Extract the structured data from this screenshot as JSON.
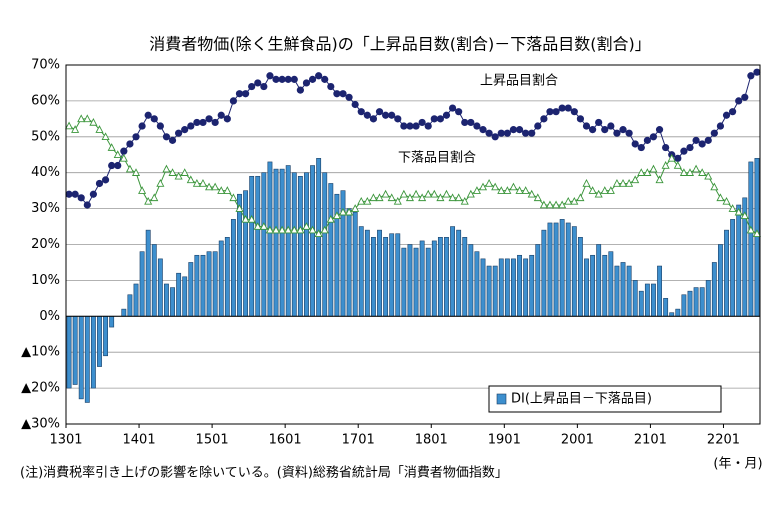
{
  "chart_data": {
    "type": "bar",
    "title": "消費者物価(除く生鮮食品)の「上昇品目数(割合)－下落品目数(割合)」",
    "categories": [
      "1301",
      null,
      null,
      null,
      null,
      null,
      null,
      null,
      null,
      null,
      null,
      null,
      "1401",
      null,
      null,
      null,
      null,
      null,
      null,
      null,
      null,
      null,
      null,
      null,
      "1501",
      null,
      null,
      null,
      null,
      null,
      null,
      null,
      null,
      null,
      null,
      null,
      "1601",
      null,
      null,
      null,
      null,
      null,
      null,
      null,
      null,
      null,
      null,
      null,
      "1701",
      null,
      null,
      null,
      null,
      null,
      null,
      null,
      null,
      null,
      null,
      null,
      "1801",
      null,
      null,
      null,
      null,
      null,
      null,
      null,
      null,
      null,
      null,
      null,
      "1901",
      null,
      null,
      null,
      null,
      null,
      null,
      null,
      null,
      null,
      null,
      null,
      "2001",
      null,
      null,
      null,
      null,
      null,
      null,
      null,
      null,
      null,
      null,
      null,
      "2101",
      null,
      null,
      null,
      null,
      null,
      null,
      null,
      null,
      null,
      null,
      null,
      "2201",
      null,
      null,
      null,
      null,
      null
    ],
    "series": [
      {
        "name": "DI(上昇品目－下落品目)",
        "type": "bar",
        "color": "#3d8fce",
        "values": [
          -20,
          -19,
          -23,
          -24,
          -20,
          -14,
          -11,
          -3,
          0,
          2,
          6,
          9,
          18,
          24,
          20,
          16,
          9,
          8,
          12,
          11,
          15,
          17,
          17,
          18,
          18,
          21,
          22,
          27,
          34,
          35,
          39,
          39,
          40,
          43,
          41,
          41,
          42,
          40,
          39,
          40,
          42,
          44,
          40,
          37,
          34,
          35,
          30,
          29,
          25,
          24,
          22,
          24,
          22,
          23,
          23,
          19,
          20,
          19,
          21,
          19,
          21,
          22,
          22,
          25,
          24,
          22,
          20,
          18,
          16,
          14,
          14,
          16,
          16,
          16,
          17,
          16,
          17,
          20,
          24,
          26,
          26,
          27,
          26,
          25,
          22,
          16,
          17,
          20,
          17,
          18,
          14,
          15,
          14,
          10,
          7,
          9,
          9,
          14,
          5,
          1,
          2,
          6,
          7,
          8,
          8,
          10,
          15,
          20,
          24,
          27,
          31,
          33,
          43,
          44
        ]
      },
      {
        "name": "上昇品目割合",
        "type": "line",
        "marker": "circle",
        "color": "#1c2470",
        "values": [
          34,
          34,
          33,
          31,
          34,
          37,
          38,
          42,
          42,
          46,
          48,
          50,
          53,
          56,
          55,
          53,
          50,
          49,
          51,
          52,
          53,
          54,
          54,
          55,
          54,
          56,
          55,
          60,
          62,
          62,
          64,
          65,
          64,
          67,
          66,
          66,
          66,
          66,
          63,
          65,
          66,
          67,
          66,
          64,
          62,
          62,
          61,
          59,
          57,
          56,
          55,
          57,
          56,
          56,
          55,
          53,
          53,
          53,
          54,
          53,
          55,
          55,
          56,
          58,
          57,
          54,
          54,
          53,
          52,
          51,
          50,
          51,
          51,
          52,
          52,
          51,
          51,
          53,
          55,
          57,
          57,
          58,
          58,
          57,
          55,
          53,
          52,
          54,
          52,
          53,
          51,
          52,
          51,
          48,
          47,
          49,
          50,
          52,
          47,
          45,
          44,
          46,
          47,
          49,
          48,
          49,
          51,
          53,
          56,
          57,
          60,
          61,
          67,
          68
        ]
      },
      {
        "name": "下落品目割合",
        "type": "line",
        "marker": "triangle",
        "color": "#3c963c",
        "values": [
          53,
          52,
          55,
          55,
          54,
          52,
          50,
          47,
          45,
          44,
          41,
          40,
          35,
          32,
          33,
          37,
          41,
          40,
          39,
          40,
          38,
          37,
          37,
          36,
          36,
          35,
          35,
          33,
          30,
          27,
          27,
          25,
          25,
          24,
          24,
          24,
          24,
          24,
          24,
          25,
          24,
          23,
          24,
          27,
          28,
          29,
          29,
          30,
          32,
          32,
          33,
          33,
          34,
          33,
          32,
          34,
          33,
          34,
          33,
          34,
          34,
          33,
          34,
          33,
          33,
          32,
          34,
          35,
          36,
          37,
          36,
          35,
          35,
          36,
          35,
          35,
          34,
          33,
          31,
          31,
          31,
          31,
          32,
          32,
          33,
          37,
          35,
          34,
          35,
          35,
          37,
          37,
          37,
          38,
          40,
          40,
          41,
          38,
          42,
          44,
          42,
          40,
          40,
          41,
          40,
          39,
          36,
          33,
          32,
          30,
          29,
          28,
          24,
          23
        ]
      }
    ],
    "ylim": [
      -30,
      70
    ],
    "yticks": [
      {
        "value": -30,
        "label": "▲30%"
      },
      {
        "value": -20,
        "label": "▲20%"
      },
      {
        "value": -10,
        "label": "▲10%"
      },
      {
        "value": 0,
        "label": "0%"
      },
      {
        "value": 10,
        "label": "10%"
      },
      {
        "value": 20,
        "label": "20%"
      },
      {
        "value": 30,
        "label": "30%"
      },
      {
        "value": 40,
        "label": "40%"
      },
      {
        "value": 50,
        "label": "50%"
      },
      {
        "value": 60,
        "label": "60%"
      },
      {
        "value": 70,
        "label": "70%"
      }
    ],
    "grid": true,
    "x_unit": "(年・月)",
    "footnote": "(注)消費税率引き上げの影響を除いている。(資料)総務省統計局「消費者物価指数」"
  }
}
